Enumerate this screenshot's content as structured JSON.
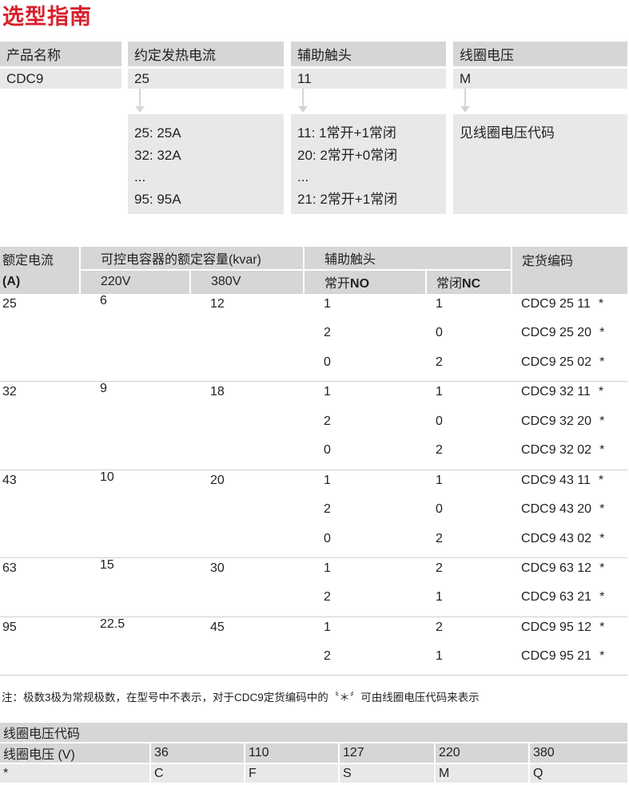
{
  "title": "选型指南",
  "selector": [
    {
      "header": "产品名称",
      "value": "CDC9",
      "details": []
    },
    {
      "header": "约定发热电流",
      "value": "25",
      "details": [
        "25: 25A",
        "32: 32A",
        "...",
        "95: 95A"
      ]
    },
    {
      "header": "辅助触头",
      "value": "11",
      "details": [
        "11: 1常开+1常闭",
        "20: 2常开+0常闭",
        "...",
        "21: 2常开+1常闭"
      ]
    },
    {
      "header": "线圈电压",
      "value": "M",
      "details": [
        "见线圈电压代码"
      ]
    }
  ],
  "table": {
    "h_current": "额定电流",
    "h_current_unit": "(A)",
    "h_capacity": "可控电容器的额定容量(kvar)",
    "h_aux": "辅助触头",
    "h_code": "定货编码",
    "h_220": "220V",
    "h_380": "380V",
    "h_no_cn": "常开",
    "h_no": "NO",
    "h_nc_cn": "常闭",
    "h_nc": "NC",
    "groups": [
      {
        "current": "25",
        "v220": "6",
        "v380": "12",
        "rows": [
          {
            "no": "1",
            "nc": "1",
            "code": "CDC9 25 11"
          },
          {
            "no": "2",
            "nc": "0",
            "code": "CDC9 25 20"
          },
          {
            "no": "0",
            "nc": "2",
            "code": "CDC9 25 02"
          }
        ]
      },
      {
        "current": "32",
        "v220": "9",
        "v380": "18",
        "rows": [
          {
            "no": "1",
            "nc": "1",
            "code": "CDC9 32 11"
          },
          {
            "no": "2",
            "nc": "0",
            "code": "CDC9 32 20"
          },
          {
            "no": "0",
            "nc": "2",
            "code": "CDC9 32 02"
          }
        ]
      },
      {
        "current": "43",
        "v220": "10",
        "v380": "20",
        "rows": [
          {
            "no": "1",
            "nc": "1",
            "code": "CDC9 43 11"
          },
          {
            "no": "2",
            "nc": "0",
            "code": "CDC9 43 20"
          },
          {
            "no": "0",
            "nc": "2",
            "code": "CDC9 43 02"
          }
        ]
      },
      {
        "current": "63",
        "v220": "15",
        "v380": "30",
        "rows": [
          {
            "no": "1",
            "nc": "2",
            "code": "CDC9 63 12"
          },
          {
            "no": "2",
            "nc": "1",
            "code": "CDC9 63 21"
          }
        ]
      },
      {
        "current": "95",
        "v220": "22.5",
        "v380": "45",
        "rows": [
          {
            "no": "1",
            "nc": "2",
            "code": "CDC9 95 12"
          },
          {
            "no": "2",
            "nc": "1",
            "code": "CDC9 95 21"
          }
        ]
      }
    ],
    "star": "*"
  },
  "note": "注：极数3极为常规极数，在型号中不表示，对于CDC9定货编码中的〝＊〞可由线圈电压代码来表示",
  "coil": {
    "title": "线圈电压代码",
    "voltage_label": "线圈电压 (V)",
    "voltages": [
      "36",
      "110",
      "127",
      "220",
      "380"
    ],
    "code_label": "*",
    "codes": [
      "C",
      "F",
      "S",
      "M",
      "Q"
    ]
  }
}
